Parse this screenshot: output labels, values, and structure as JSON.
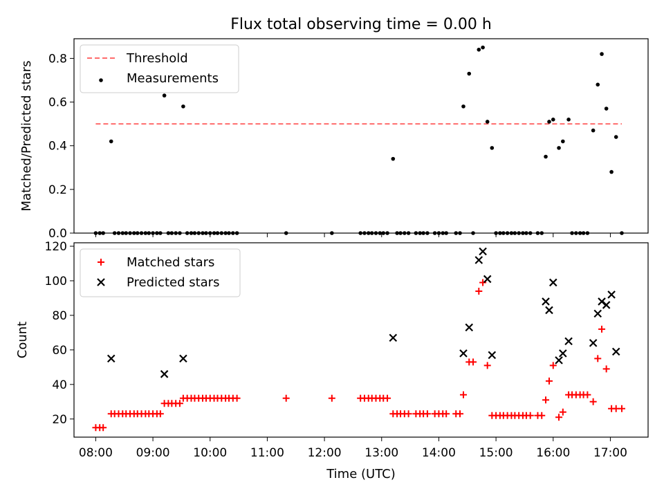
{
  "figure": {
    "title": "Flux total observing time = 0.00 h",
    "xlabel": "Time (UTC)"
  },
  "colors": {
    "threshold": "#ff6b6b",
    "measurements": "#000000",
    "matched": "#ff0000",
    "predicted": "#000000"
  },
  "chart_data": [
    {
      "type": "scatter",
      "ylabel": "Matched/Predicted stars",
      "ylim": [
        0,
        0.89
      ],
      "yticks": [
        0.0,
        0.2,
        0.4,
        0.6,
        0.8
      ],
      "xlim_hours": [
        7.62,
        17.66
      ],
      "xticks": [
        "08:00",
        "09:00",
        "10:00",
        "11:00",
        "12:00",
        "13:00",
        "14:00",
        "15:00",
        "16:00",
        "17:00"
      ],
      "legend": {
        "position": "top-left",
        "entries": [
          "Threshold",
          "Measurements"
        ]
      },
      "threshold": {
        "name": "Threshold",
        "value": 0.5,
        "x": [
          8.0,
          17.2
        ]
      },
      "series": [
        {
          "name": "Measurements",
          "points": [
            [
              8.0,
              0
            ],
            [
              8.07,
              0
            ],
            [
              8.13,
              0
            ],
            [
              8.27,
              0.42
            ],
            [
              8.33,
              0
            ],
            [
              8.4,
              0
            ],
            [
              8.47,
              0
            ],
            [
              8.53,
              0
            ],
            [
              8.6,
              0
            ],
            [
              8.67,
              0
            ],
            [
              8.73,
              0
            ],
            [
              8.8,
              0
            ],
            [
              8.87,
              0
            ],
            [
              8.93,
              0
            ],
            [
              9.0,
              0
            ],
            [
              9.07,
              0
            ],
            [
              9.13,
              0
            ],
            [
              9.2,
              0.63
            ],
            [
              9.27,
              0
            ],
            [
              9.33,
              0
            ],
            [
              9.4,
              0
            ],
            [
              9.47,
              0
            ],
            [
              9.53,
              0.58
            ],
            [
              9.6,
              0
            ],
            [
              9.67,
              0
            ],
            [
              9.73,
              0
            ],
            [
              9.8,
              0
            ],
            [
              9.87,
              0
            ],
            [
              9.93,
              0
            ],
            [
              10.0,
              0
            ],
            [
              10.07,
              0
            ],
            [
              10.13,
              0
            ],
            [
              10.2,
              0
            ],
            [
              10.27,
              0
            ],
            [
              10.33,
              0
            ],
            [
              10.4,
              0
            ],
            [
              10.47,
              0
            ],
            [
              11.33,
              0
            ],
            [
              12.13,
              0
            ],
            [
              12.63,
              0
            ],
            [
              12.7,
              0
            ],
            [
              12.77,
              0
            ],
            [
              12.83,
              0
            ],
            [
              12.9,
              0
            ],
            [
              12.97,
              0
            ],
            [
              13.03,
              0
            ],
            [
              13.1,
              0
            ],
            [
              13.2,
              0.34
            ],
            [
              13.27,
              0
            ],
            [
              13.33,
              0
            ],
            [
              13.4,
              0
            ],
            [
              13.47,
              0
            ],
            [
              13.6,
              0
            ],
            [
              13.67,
              0
            ],
            [
              13.73,
              0
            ],
            [
              13.8,
              0
            ],
            [
              13.93,
              0
            ],
            [
              14.0,
              0
            ],
            [
              14.07,
              0
            ],
            [
              14.13,
              0
            ],
            [
              14.3,
              0
            ],
            [
              14.37,
              0
            ],
            [
              14.43,
              0.58
            ],
            [
              14.53,
              0.73
            ],
            [
              14.6,
              0
            ],
            [
              14.7,
              0.84
            ],
            [
              14.77,
              0.85
            ],
            [
              14.85,
              0.51
            ],
            [
              14.93,
              0.39
            ],
            [
              15.0,
              0
            ],
            [
              15.07,
              0
            ],
            [
              15.13,
              0
            ],
            [
              15.2,
              0
            ],
            [
              15.27,
              0
            ],
            [
              15.33,
              0
            ],
            [
              15.4,
              0
            ],
            [
              15.47,
              0
            ],
            [
              15.53,
              0
            ],
            [
              15.6,
              0
            ],
            [
              15.73,
              0
            ],
            [
              15.8,
              0
            ],
            [
              15.87,
              0.35
            ],
            [
              15.93,
              0.51
            ],
            [
              16.0,
              0.52
            ],
            [
              16.1,
              0.39
            ],
            [
              16.17,
              0.42
            ],
            [
              16.27,
              0.52
            ],
            [
              16.33,
              0
            ],
            [
              16.4,
              0
            ],
            [
              16.47,
              0
            ],
            [
              16.53,
              0
            ],
            [
              16.6,
              0
            ],
            [
              16.7,
              0.47
            ],
            [
              16.78,
              0.68
            ],
            [
              16.85,
              0.82
            ],
            [
              16.93,
              0.57
            ],
            [
              17.02,
              0.28
            ],
            [
              17.1,
              0.44
            ],
            [
              17.2,
              0
            ]
          ]
        }
      ]
    },
    {
      "type": "scatter",
      "ylabel": "Count",
      "ylim": [
        9.5,
        122
      ],
      "yticks": [
        20,
        40,
        60,
        80,
        100,
        120
      ],
      "xlim_hours": [
        7.62,
        17.66
      ],
      "xticks": [
        "08:00",
        "09:00",
        "10:00",
        "11:00",
        "12:00",
        "13:00",
        "14:00",
        "15:00",
        "16:00",
        "17:00"
      ],
      "legend": {
        "position": "top-left",
        "entries": [
          "Matched stars",
          "Predicted stars"
        ]
      },
      "series": [
        {
          "name": "Matched stars",
          "marker": "plus",
          "points": [
            [
              8.0,
              15
            ],
            [
              8.07,
              15
            ],
            [
              8.13,
              15
            ],
            [
              8.27,
              23
            ],
            [
              8.33,
              23
            ],
            [
              8.4,
              23
            ],
            [
              8.47,
              23
            ],
            [
              8.53,
              23
            ],
            [
              8.6,
              23
            ],
            [
              8.67,
              23
            ],
            [
              8.73,
              23
            ],
            [
              8.8,
              23
            ],
            [
              8.87,
              23
            ],
            [
              8.93,
              23
            ],
            [
              9.0,
              23
            ],
            [
              9.07,
              23
            ],
            [
              9.13,
              23
            ],
            [
              9.2,
              29
            ],
            [
              9.27,
              29
            ],
            [
              9.33,
              29
            ],
            [
              9.4,
              29
            ],
            [
              9.47,
              29
            ],
            [
              9.53,
              32
            ],
            [
              9.6,
              32
            ],
            [
              9.67,
              32
            ],
            [
              9.73,
              32
            ],
            [
              9.8,
              32
            ],
            [
              9.87,
              32
            ],
            [
              9.93,
              32
            ],
            [
              10.0,
              32
            ],
            [
              10.07,
              32
            ],
            [
              10.13,
              32
            ],
            [
              10.2,
              32
            ],
            [
              10.27,
              32
            ],
            [
              10.33,
              32
            ],
            [
              10.4,
              32
            ],
            [
              10.47,
              32
            ],
            [
              11.33,
              32
            ],
            [
              12.13,
              32
            ],
            [
              12.63,
              32
            ],
            [
              12.7,
              32
            ],
            [
              12.77,
              32
            ],
            [
              12.83,
              32
            ],
            [
              12.9,
              32
            ],
            [
              12.97,
              32
            ],
            [
              13.03,
              32
            ],
            [
              13.1,
              32
            ],
            [
              13.2,
              23
            ],
            [
              13.27,
              23
            ],
            [
              13.33,
              23
            ],
            [
              13.4,
              23
            ],
            [
              13.47,
              23
            ],
            [
              13.6,
              23
            ],
            [
              13.67,
              23
            ],
            [
              13.73,
              23
            ],
            [
              13.8,
              23
            ],
            [
              13.93,
              23
            ],
            [
              14.0,
              23
            ],
            [
              14.07,
              23
            ],
            [
              14.13,
              23
            ],
            [
              14.3,
              23
            ],
            [
              14.37,
              23
            ],
            [
              14.43,
              34
            ],
            [
              14.53,
              53
            ],
            [
              14.6,
              53
            ],
            [
              14.7,
              94
            ],
            [
              14.77,
              99
            ],
            [
              14.85,
              51
            ],
            [
              14.93,
              22
            ],
            [
              15.0,
              22
            ],
            [
              15.07,
              22
            ],
            [
              15.13,
              22
            ],
            [
              15.2,
              22
            ],
            [
              15.27,
              22
            ],
            [
              15.33,
              22
            ],
            [
              15.4,
              22
            ],
            [
              15.47,
              22
            ],
            [
              15.53,
              22
            ],
            [
              15.6,
              22
            ],
            [
              15.73,
              22
            ],
            [
              15.8,
              22
            ],
            [
              15.87,
              31
            ],
            [
              15.93,
              42
            ],
            [
              16.0,
              51
            ],
            [
              16.1,
              21
            ],
            [
              16.17,
              24
            ],
            [
              16.27,
              34
            ],
            [
              16.33,
              34
            ],
            [
              16.4,
              34
            ],
            [
              16.47,
              34
            ],
            [
              16.53,
              34
            ],
            [
              16.6,
              34
            ],
            [
              16.7,
              30
            ],
            [
              16.78,
              55
            ],
            [
              16.85,
              72
            ],
            [
              16.93,
              49
            ],
            [
              17.02,
              26
            ],
            [
              17.1,
              26
            ],
            [
              17.2,
              26
            ]
          ]
        },
        {
          "name": "Predicted stars",
          "marker": "x",
          "points": [
            [
              8.27,
              55
            ],
            [
              9.2,
              46
            ],
            [
              9.53,
              55
            ],
            [
              13.2,
              67
            ],
            [
              14.43,
              58
            ],
            [
              14.53,
              73
            ],
            [
              14.7,
              112
            ],
            [
              14.77,
              117
            ],
            [
              14.85,
              101
            ],
            [
              14.93,
              57
            ],
            [
              15.87,
              88
            ],
            [
              15.93,
              83
            ],
            [
              16.0,
              99
            ],
            [
              16.1,
              54
            ],
            [
              16.17,
              58
            ],
            [
              16.27,
              65
            ],
            [
              16.7,
              64
            ],
            [
              16.78,
              81
            ],
            [
              16.85,
              88
            ],
            [
              16.93,
              86
            ],
            [
              17.02,
              92
            ],
            [
              17.1,
              59
            ]
          ]
        }
      ]
    }
  ]
}
